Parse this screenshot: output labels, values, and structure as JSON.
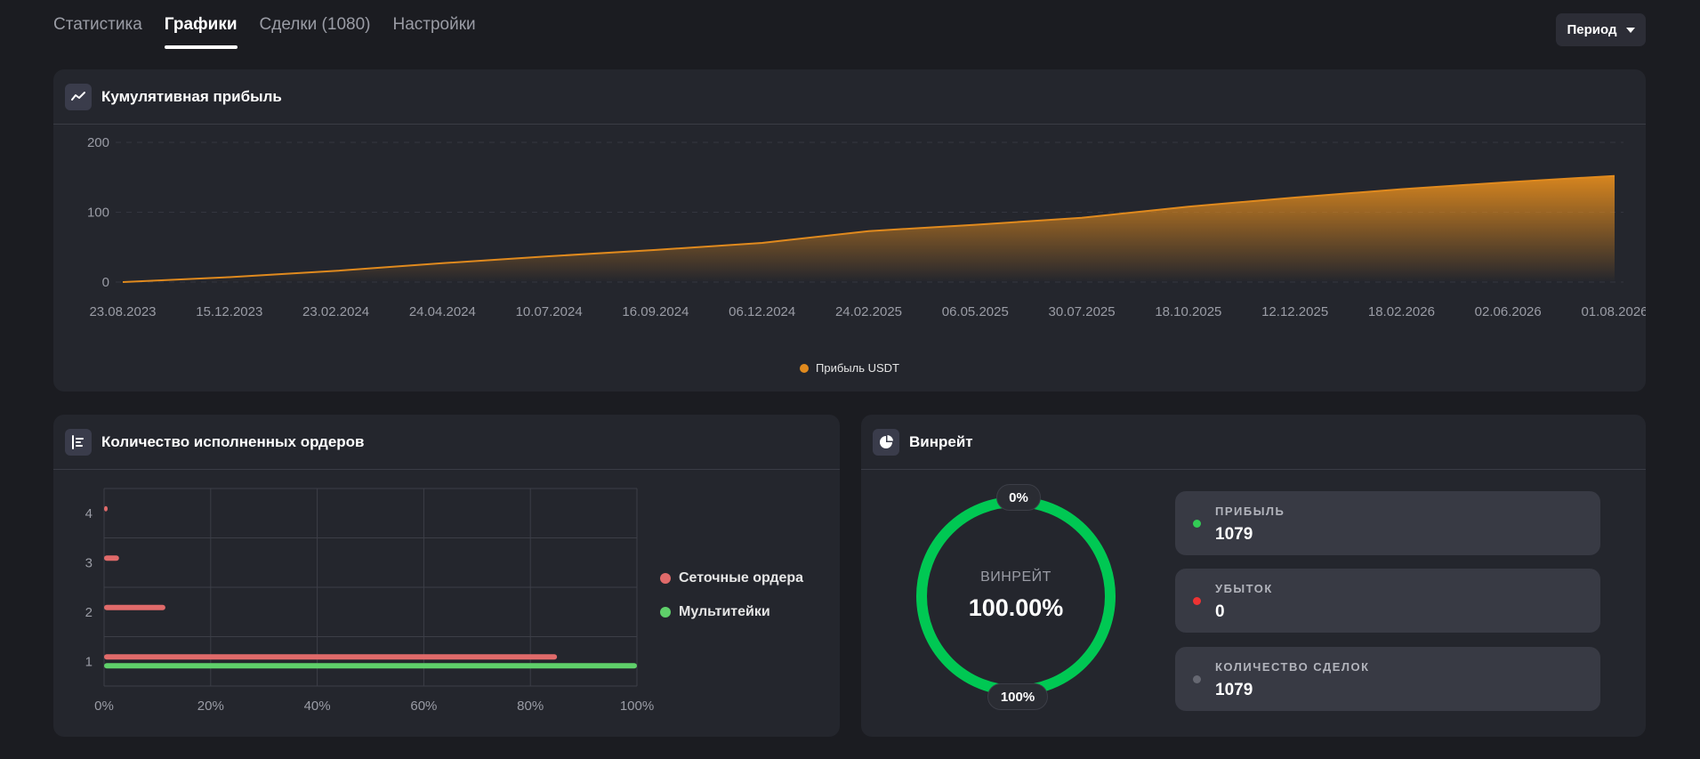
{
  "tabs": [
    {
      "label": "Статистика"
    },
    {
      "label": "Графики",
      "active": true
    },
    {
      "label": "Сделки (1080)"
    },
    {
      "label": "Настройки"
    }
  ],
  "period": {
    "label": "Период"
  },
  "colors": {
    "profit_line": "#e08a1e",
    "grid_orders": "#e06a6a",
    "multi_deals": "#5fd06a",
    "donut": "#00c853",
    "win": "#33cc55",
    "loss": "#ee3333",
    "neutral": "#666872"
  },
  "cumulative": {
    "title": "Кумулятивная прибыль",
    "icon": "line-chart-icon",
    "legend": "Прибыль USDT"
  },
  "orders": {
    "title": "Количество исполненных ордеров",
    "icon": "bar-list-icon",
    "legend": [
      {
        "label": "Сеточные ордера"
      },
      {
        "label": "Мультитейки"
      }
    ]
  },
  "winrate": {
    "title": "Винрейт",
    "icon": "pie-chart-icon",
    "donut_label": "ВИНРЕЙТ",
    "donut_value": "100.00%",
    "pill_top": "0%",
    "pill_bottom": "100%",
    "stats": [
      {
        "label": "ПРИБЫЛЬ",
        "value": "1079"
      },
      {
        "label": "УБЫТОК",
        "value": "0"
      },
      {
        "label": "КОЛИЧЕСТВО СДЕЛОК",
        "value": "1079"
      }
    ]
  },
  "chart_data": [
    {
      "type": "area",
      "title": "Кумулятивная прибыль",
      "ylim": [
        0,
        200
      ],
      "yticks": [
        0,
        100,
        200
      ],
      "xlim": [
        "2023-08-23",
        "2026-08-01"
      ],
      "xticks": [
        "23.08.2023",
        "15.12.2023",
        "23.02.2024",
        "24.04.2024",
        "10.07.2024",
        "16.09.2024",
        "06.12.2024",
        "24.02.2025",
        "06.05.2025",
        "30.07.2025",
        "18.10.2025",
        "12.12.2025",
        "18.02.2026",
        "02.06.2026",
        "01.08.2026"
      ],
      "grid": true,
      "series": [
        {
          "name": "Прибыль USDT",
          "x": [
            "23.08.2023",
            "15.12.2023",
            "23.02.2024",
            "24.04.2024",
            "10.07.2024",
            "16.09.2024",
            "06.12.2024",
            "24.02.2025",
            "06.05.2025",
            "30.07.2025",
            "18.10.2025",
            "12.12.2025",
            "18.02.2026",
            "02.06.2026",
            "01.08.2026"
          ],
          "values": [
            0,
            7,
            16,
            27,
            37,
            46,
            56,
            73,
            82,
            92,
            108,
            121,
            133,
            143,
            152
          ]
        }
      ]
    },
    {
      "type": "bar",
      "orientation": "horizontal",
      "title": "Количество исполненных ордеров",
      "categories": [
        "1",
        "2",
        "3",
        "4"
      ],
      "xlim": [
        0,
        100
      ],
      "xticks": [
        "0%",
        "20%",
        "40%",
        "60%",
        "80%",
        "100%"
      ],
      "series": [
        {
          "name": "Сеточные ордера",
          "values": [
            85,
            11.5,
            2.8,
            0.5
          ]
        },
        {
          "name": "Мультитейки",
          "values": [
            100,
            0,
            0,
            0
          ]
        }
      ]
    },
    {
      "type": "pie",
      "title": "Винрейт",
      "categories": [
        "Прибыль",
        "Убыток"
      ],
      "values": [
        1079,
        0
      ]
    }
  ]
}
